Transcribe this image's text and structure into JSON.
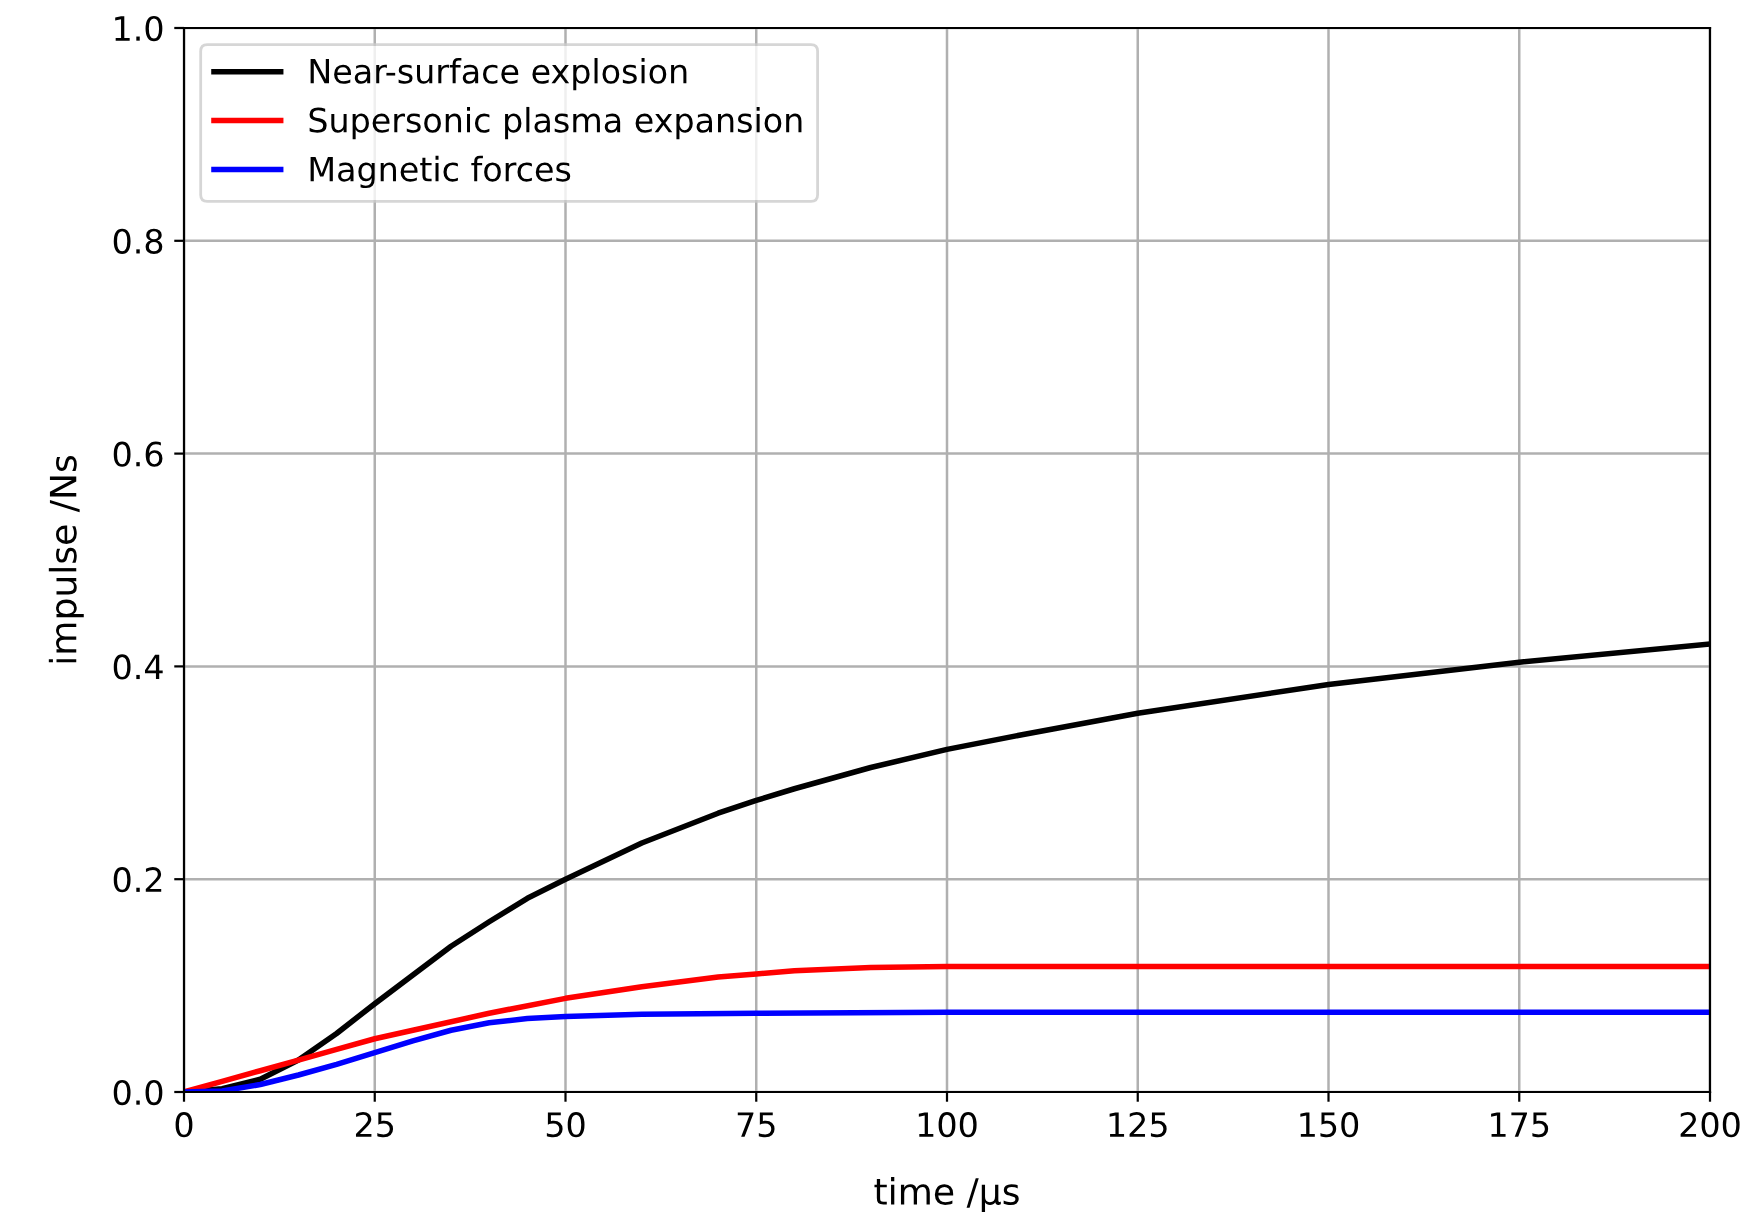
{
  "chart_data": {
    "type": "line",
    "xlabel": "time /µs",
    "ylabel": "impulse /Ns",
    "xlim": [
      0,
      200
    ],
    "ylim": [
      0,
      1.0
    ],
    "xticks": [
      0,
      25,
      50,
      75,
      100,
      125,
      150,
      175,
      200
    ],
    "yticks": [
      {
        "value": 0,
        "label": "0.0"
      },
      0.2,
      0.4,
      0.6,
      0.8,
      {
        "value": 1.0,
        "label": "1.0"
      }
    ],
    "grid": true,
    "legend": "top left",
    "line_style": "solid",
    "marker": "none",
    "series": [
      {
        "name": "Near-surface explosion",
        "color": "#000000",
        "x": [
          0,
          5,
          10,
          15,
          20,
          25,
          30,
          35,
          40,
          45,
          50,
          60,
          70,
          75,
          80,
          90,
          100,
          110,
          125,
          150,
          175,
          200
        ],
        "values": [
          0,
          0.003,
          0.012,
          0.03,
          0.055,
          0.083,
          0.11,
          0.137,
          0.16,
          0.182,
          0.2,
          0.234,
          0.262,
          0.274,
          0.285,
          0.305,
          0.322,
          0.336,
          0.356,
          0.383,
          0.404,
          0.421
        ]
      },
      {
        "name": "Supersonic plasma expansion",
        "color": "#ff0000",
        "x": [
          0,
          5,
          10,
          15,
          20,
          25,
          30,
          40,
          50,
          60,
          70,
          75,
          80,
          90,
          100,
          200
        ],
        "values": [
          0,
          0.01,
          0.02,
          0.03,
          0.04,
          0.05,
          0.058,
          0.074,
          0.088,
          0.099,
          0.108,
          0.111,
          0.114,
          0.117,
          0.118,
          0.118
        ]
      },
      {
        "name": "Magnetic forces",
        "color": "#0000ff",
        "x": [
          0,
          5,
          10,
          15,
          20,
          25,
          30,
          35,
          40,
          45,
          50,
          60,
          75,
          100,
          200
        ],
        "values": [
          0,
          0.001,
          0.007,
          0.016,
          0.026,
          0.037,
          0.048,
          0.058,
          0.065,
          0.069,
          0.071,
          0.073,
          0.074,
          0.075,
          0.075
        ]
      }
    ]
  }
}
